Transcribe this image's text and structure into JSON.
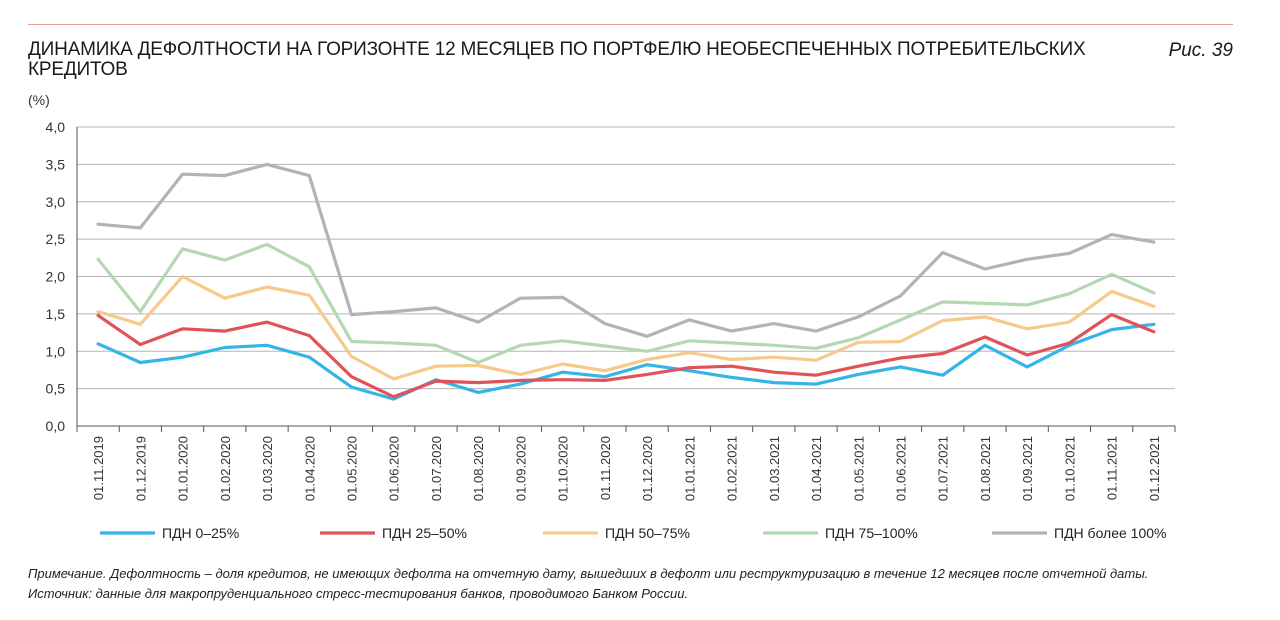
{
  "title": "ДИНАМИКА ДЕФОЛТНОСТИ НА ГОРИЗОНТЕ 12 МЕСЯЦЕВ ПО ПОРТФЕЛЮ НЕОБЕСПЕЧЕННЫХ ПОТРЕБИТЕЛЬСКИХ КРЕДИТОВ",
  "figure_label": "Рис. 39",
  "unit_label": "(%)",
  "note": "Примечание. Дефолтность – доля кредитов, не имеющих дефолта на отчетную дату, вышедших в дефолт или реструктуризацию в течение 12 месяцев после отчетной даты.",
  "source": "Источник: данные для макропруденциального стресс-тестирования банков, проводимого Банком России.",
  "colors": {
    "rule": "#e89b9b",
    "grid": "#b5b5b5",
    "axis": "#555555"
  },
  "chart_data": {
    "type": "line",
    "ylim": [
      0,
      4
    ],
    "yticks": [
      "0,0",
      "0,5",
      "1,0",
      "1,5",
      "2,0",
      "2,5",
      "3,0",
      "3,5",
      "4,0"
    ],
    "grid": true,
    "legend_position": "bottom",
    "categories": [
      "01.11.2019",
      "01.12.2019",
      "01.01.2020",
      "01.02.2020",
      "01.03.2020",
      "01.04.2020",
      "01.05.2020",
      "01.06.2020",
      "01.07.2020",
      "01.08.2020",
      "01.09.2020",
      "01.10.2020",
      "01.11.2020",
      "01.12.2020",
      "01.01.2021",
      "01.02.2021",
      "01.03.2021",
      "01.04.2021",
      "01.05.2021",
      "01.06.2021",
      "01.07.2021",
      "01.08.2021",
      "01.09.2021",
      "01.10.2021",
      "01.11.2021",
      "01.12.2021"
    ],
    "series": [
      {
        "name": "ПДН 0–25%",
        "color": "#35b4e6",
        "values": [
          1.1,
          0.85,
          0.92,
          1.05,
          1.08,
          0.92,
          0.52,
          0.36,
          0.62,
          0.45,
          0.56,
          0.72,
          0.66,
          0.82,
          0.74,
          0.65,
          0.58,
          0.56,
          0.69,
          0.79,
          0.68,
          1.08,
          0.79,
          1.08,
          1.29,
          1.36
        ]
      },
      {
        "name": "ПДН 25–50%",
        "color": "#e0535a",
        "values": [
          1.48,
          1.09,
          1.3,
          1.27,
          1.39,
          1.21,
          0.66,
          0.39,
          0.6,
          0.58,
          0.61,
          0.62,
          0.61,
          0.69,
          0.78,
          0.8,
          0.72,
          0.68,
          0.8,
          0.91,
          0.97,
          1.19,
          0.95,
          1.11,
          1.49,
          1.26
        ]
      },
      {
        "name": "ПДН 50–75%",
        "color": "#f7c98a",
        "values": [
          1.53,
          1.36,
          2.0,
          1.71,
          1.86,
          1.75,
          0.93,
          0.63,
          0.8,
          0.81,
          0.69,
          0.83,
          0.74,
          0.89,
          0.98,
          0.89,
          0.92,
          0.88,
          1.12,
          1.13,
          1.41,
          1.46,
          1.3,
          1.39,
          1.8,
          1.6
        ]
      },
      {
        "name": "ПДН 75–100%",
        "color": "#b4d8b1",
        "values": [
          2.23,
          1.53,
          2.37,
          2.22,
          2.43,
          2.13,
          1.13,
          1.11,
          1.08,
          0.85,
          1.08,
          1.14,
          1.07,
          1.0,
          1.14,
          1.11,
          1.08,
          1.04,
          1.18,
          1.42,
          1.66,
          1.64,
          1.62,
          1.77,
          2.03,
          1.78
        ]
      },
      {
        "name": "ПДН более 100%",
        "color": "#b3b3b3",
        "values": [
          2.7,
          2.65,
          3.37,
          3.35,
          3.5,
          3.35,
          1.49,
          1.53,
          1.58,
          1.39,
          1.71,
          1.72,
          1.37,
          1.2,
          1.42,
          1.27,
          1.37,
          1.27,
          1.46,
          1.74,
          2.32,
          2.1,
          2.23,
          2.31,
          2.56,
          2.46
        ]
      }
    ]
  }
}
